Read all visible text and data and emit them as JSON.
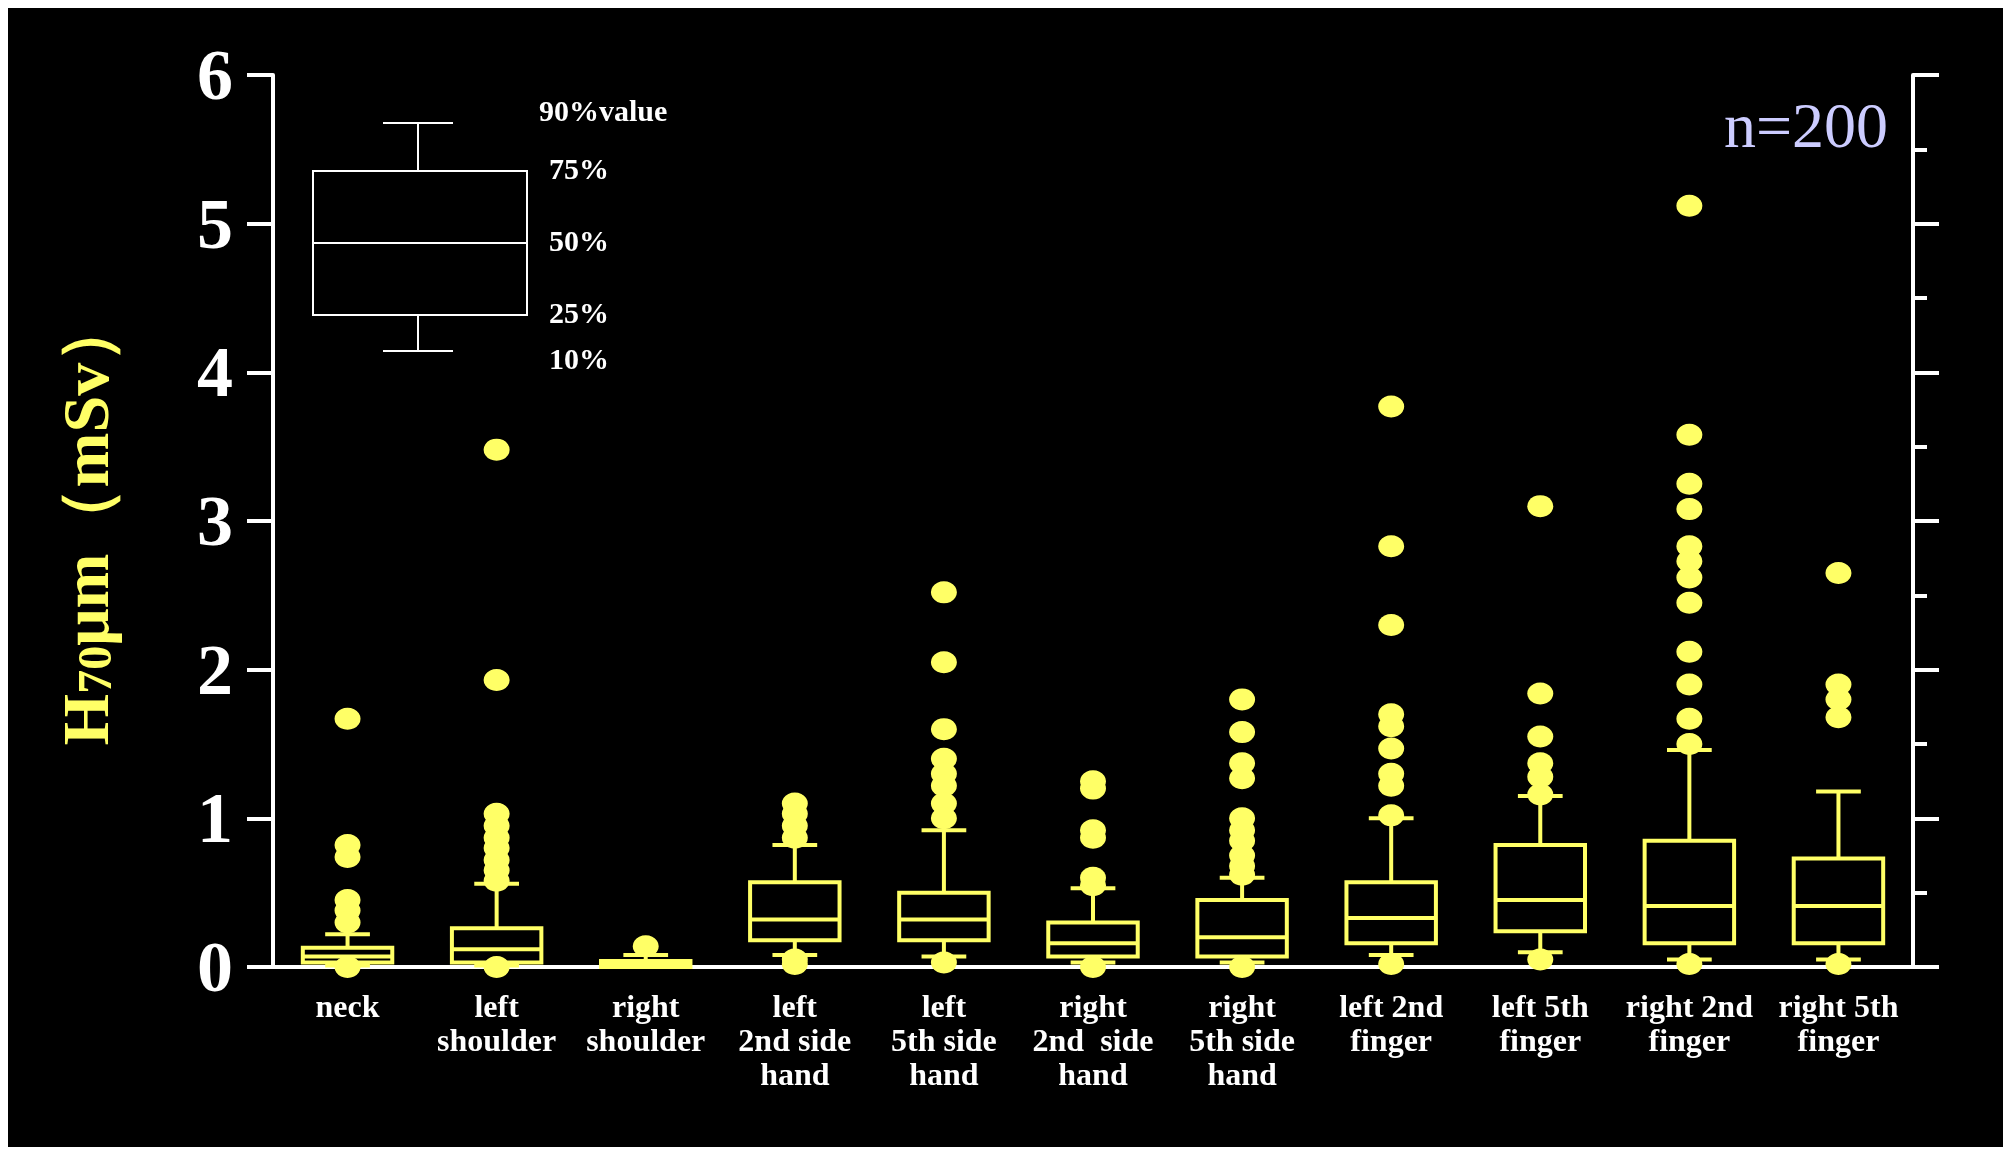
{
  "chart_data": {
    "type": "box",
    "ylabel": "H$_{70}$μm（mSv）",
    "categories": [
      "neck",
      "left\nshoulder",
      "right\nshoulder",
      "left\n2nd side\nhand",
      "left\n5th side\nhand",
      "right\n2nd  side\nhand",
      "right\n5th side\nhand",
      "left 2nd\nfinger",
      "left 5th\nfinger",
      "right 2nd\nfinger",
      "right 5th\nfinger"
    ],
    "series": [
      {
        "color": "#ffff66",
        "boxes": [
          {
            "low": 0.01,
            "q1": 0.03,
            "median": 0.07,
            "q3": 0.13,
            "high": 0.22,
            "outliers": [
              1.67,
              0.82,
              0.74,
              0.45,
              0.38,
              0.3,
              0.0
            ]
          },
          {
            "low": 0.01,
            "q1": 0.03,
            "median": 0.12,
            "q3": 0.26,
            "high": 0.56,
            "outliers": [
              3.48,
              1.93,
              1.03,
              0.95,
              0.87,
              0.8,
              0.72,
              0.65,
              0.58,
              0.0
            ]
          },
          {
            "low": 0.0,
            "q1": 0.0,
            "median": 0.02,
            "q3": 0.04,
            "high": 0.08,
            "outliers": [
              0.14
            ]
          },
          {
            "low": 0.08,
            "q1": 0.18,
            "median": 0.32,
            "q3": 0.57,
            "high": 0.82,
            "outliers": [
              1.1,
              1.03,
              0.95,
              0.87,
              0.05,
              0.02
            ]
          },
          {
            "low": 0.07,
            "q1": 0.18,
            "median": 0.32,
            "q3": 0.5,
            "high": 0.92,
            "outliers": [
              2.52,
              2.05,
              1.6,
              1.4,
              1.3,
              1.22,
              1.1,
              1.0,
              0.03
            ]
          },
          {
            "low": 0.03,
            "q1": 0.07,
            "median": 0.16,
            "q3": 0.3,
            "high": 0.53,
            "outliers": [
              1.25,
              1.2,
              0.92,
              0.87,
              0.6,
              0.55,
              0.0
            ]
          },
          {
            "low": 0.03,
            "q1": 0.07,
            "median": 0.2,
            "q3": 0.45,
            "high": 0.6,
            "outliers": [
              1.8,
              1.58,
              1.37,
              1.27,
              1.0,
              0.92,
              0.85,
              0.75,
              0.68,
              0.62,
              0.0
            ]
          },
          {
            "low": 0.08,
            "q1": 0.16,
            "median": 0.33,
            "q3": 0.57,
            "high": 1.0,
            "outliers": [
              3.77,
              2.83,
              2.3,
              1.7,
              1.62,
              1.47,
              1.3,
              1.22,
              1.02,
              0.02
            ]
          },
          {
            "low": 0.1,
            "q1": 0.24,
            "median": 0.45,
            "q3": 0.82,
            "high": 1.15,
            "outliers": [
              3.1,
              1.84,
              1.55,
              1.37,
              1.28,
              1.16,
              0.05
            ]
          },
          {
            "low": 0.05,
            "q1": 0.16,
            "median": 0.41,
            "q3": 0.85,
            "high": 1.46,
            "outliers": [
              5.12,
              3.58,
              3.25,
              3.08,
              2.83,
              2.73,
              2.62,
              2.45,
              2.12,
              1.9,
              1.67,
              1.5,
              0.02
            ]
          },
          {
            "low": 0.05,
            "q1": 0.16,
            "median": 0.41,
            "q3": 0.73,
            "high": 1.18,
            "outliers": [
              2.65,
              1.9,
              1.8,
              1.68,
              0.02
            ]
          }
        ]
      }
    ],
    "ylim": [
      0,
      6
    ],
    "yticks": [
      0,
      1,
      2,
      3,
      4,
      5,
      6
    ],
    "annotations": [
      "90%value",
      "75%",
      "50%",
      "25%",
      "10%",
      "n=200"
    ]
  }
}
